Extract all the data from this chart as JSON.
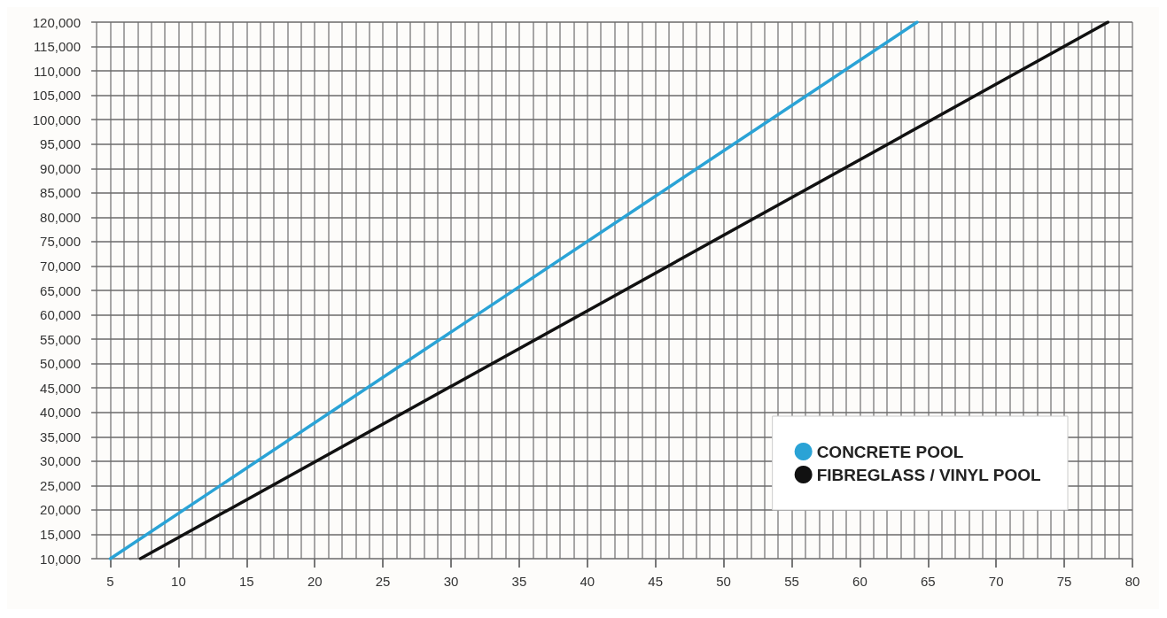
{
  "chart_data": {
    "type": "line",
    "xlim": [
      3.6,
      80
    ],
    "xticks": [
      5,
      10,
      15,
      20,
      25,
      30,
      35,
      40,
      45,
      50,
      55,
      60,
      65,
      70,
      75,
      80
    ],
    "ylim": [
      10000,
      120000
    ],
    "yticks": [
      {
        "value": 10000,
        "label": "10,000"
      },
      {
        "value": 15000,
        "label": "15,000"
      },
      {
        "value": 20000,
        "label": "20,000"
      },
      {
        "value": 25000,
        "label": "25,000"
      },
      {
        "value": 30000,
        "label": "30,000"
      },
      {
        "value": 35000,
        "label": "35,000"
      },
      {
        "value": 40000,
        "label": "40,000"
      },
      {
        "value": 45000,
        "label": "45,000"
      },
      {
        "value": 50000,
        "label": "50,000"
      },
      {
        "value": 55000,
        "label": "55,000"
      },
      {
        "value": 60000,
        "label": "60,000"
      },
      {
        "value": 65000,
        "label": "65,000"
      },
      {
        "value": 70000,
        "label": "70,000"
      },
      {
        "value": 75000,
        "label": "75,000"
      },
      {
        "value": 80000,
        "label": "80,000"
      },
      {
        "value": 85000,
        "label": "85,000"
      },
      {
        "value": 90000,
        "label": "90,000"
      },
      {
        "value": 95000,
        "label": "95,000"
      },
      {
        "value": 100000,
        "label": "100,000"
      },
      {
        "value": 105000,
        "label": "105,000"
      },
      {
        "value": 110000,
        "label": "110,000"
      },
      {
        "value": 115000,
        "label": "115,000"
      },
      {
        "value": 120000,
        "label": "120,000"
      }
    ],
    "grid": true,
    "legend": "bottom right",
    "marker": "none",
    "line_style": "solid",
    "series": [
      {
        "name": "CONCRETE POOL",
        "color": "#2aa3d6",
        "x": [
          5,
          64.2
        ],
        "values": [
          10000,
          120000
        ]
      },
      {
        "name": "FIBREGLASS / VINYL POOL",
        "color": "#111111",
        "x": [
          7.2,
          78.2
        ],
        "values": [
          10000,
          120000
        ]
      }
    ]
  }
}
